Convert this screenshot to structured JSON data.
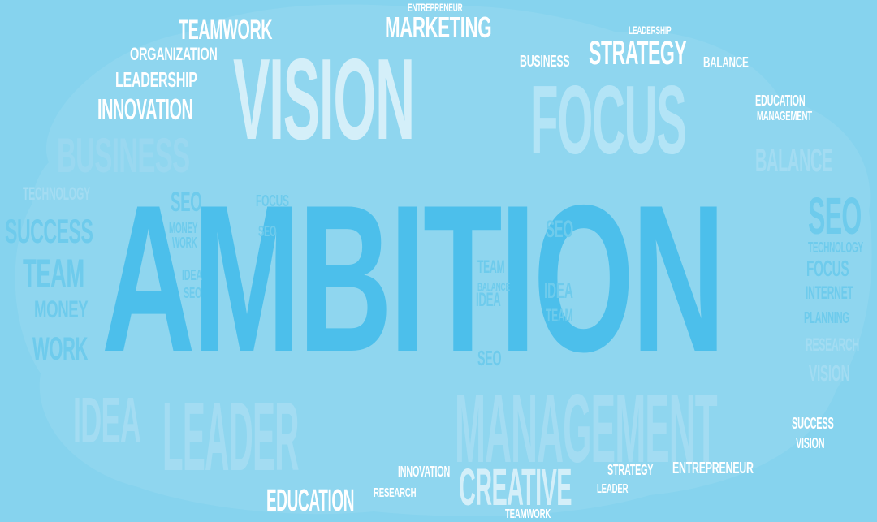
{
  "palette": {
    "background": "#86d3ee",
    "cloud": "#8fd6ef",
    "accent": "#4cbfeb",
    "highlight": "#ffffff"
  },
  "words": [
    "Ambition",
    "Vision",
    "Focus",
    "Management",
    "Leader",
    "Teamwork",
    "Marketing",
    "Strategy",
    "Organization",
    "Leadership",
    "Innovation",
    "Business",
    "Success",
    "Team",
    "Money",
    "Work",
    "Technology",
    "SEO",
    "Internet",
    "Planning",
    "Research",
    "Balance",
    "Creative",
    "Education",
    "Entrepreneur",
    "Idea"
  ]
}
